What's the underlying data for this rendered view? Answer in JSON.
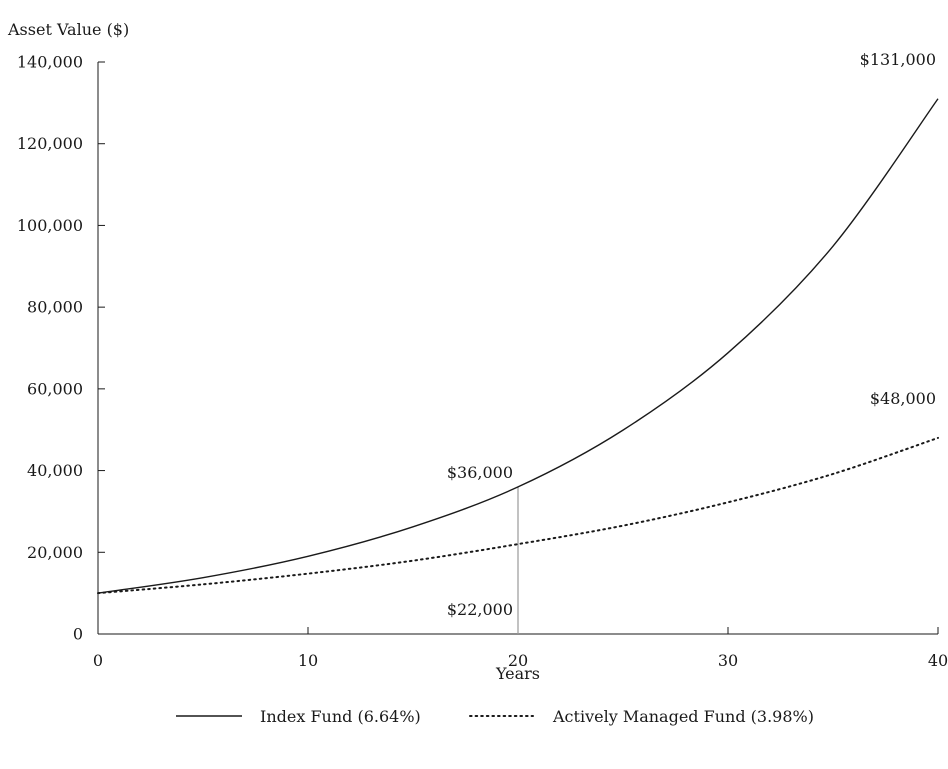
{
  "chart_data": {
    "type": "line",
    "title": "",
    "ylabel": "Asset Value ($)",
    "xlabel": "Years",
    "xlim": [
      0,
      40
    ],
    "ylim": [
      0,
      140000
    ],
    "x_ticks": [
      0,
      10,
      20,
      30,
      40
    ],
    "x_tick_labels": [
      "0",
      "10",
      "20",
      "30",
      "40"
    ],
    "y_ticks": [
      0,
      20000,
      40000,
      60000,
      80000,
      100000,
      120000,
      140000
    ],
    "y_tick_labels": [
      "0",
      "20,000",
      "40,000",
      "60,000",
      "80,000",
      "100,000",
      "120,000",
      "140,000"
    ],
    "grid": false,
    "legend_position": "bottom",
    "x": [
      0,
      5,
      10,
      15,
      20,
      25,
      30,
      35,
      40
    ],
    "series": [
      {
        "name": "Index Fund (6.64%)",
        "style": "solid",
        "color": "#1a1a1a",
        "values": [
          10000,
          13790,
          19020,
          26240,
          36000,
          49900,
          68820,
          94920,
          131000
        ]
      },
      {
        "name": "Actively Managed Fund (3.98%)",
        "style": "dotted",
        "color": "#1a1a1a",
        "values": [
          10000,
          12150,
          14770,
          17950,
          22000,
          26520,
          32230,
          39170,
          48000
        ]
      }
    ],
    "annotations": [
      {
        "text": "$131,000",
        "x": 40,
        "y": 131000,
        "anchor": "end"
      },
      {
        "text": "$48,000",
        "x": 40,
        "y": 48000,
        "anchor": "end"
      },
      {
        "text": "$36,000",
        "x": 20,
        "y": 36000,
        "anchor": "end"
      },
      {
        "text": "$22,000",
        "x": 20,
        "y": 22000,
        "anchor": "end"
      }
    ],
    "reference_line": {
      "x": 20,
      "y_from": 0,
      "y_to": 36000,
      "color": "#999999"
    }
  }
}
